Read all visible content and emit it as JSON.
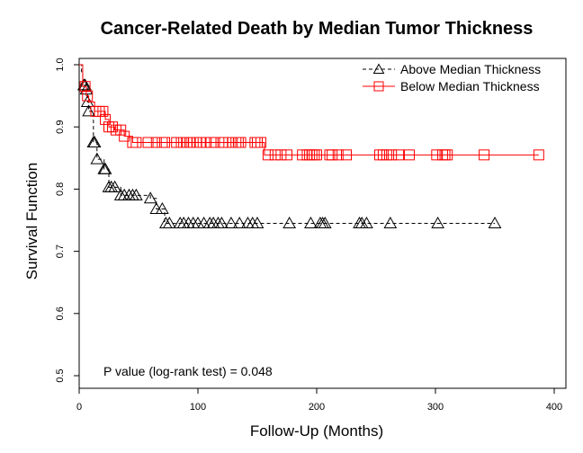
{
  "chart_data": {
    "type": "line",
    "title": "Cancer-Related Death by Median Tumor Thickness",
    "xlabel": "Follow-Up (Months)",
    "ylabel": "Survival Function",
    "xlim": [
      0,
      400
    ],
    "ylim": [
      0.48,
      1.0
    ],
    "xticks": [
      0,
      100,
      200,
      300,
      400
    ],
    "yticks": [
      0.5,
      0.6,
      0.7,
      0.8,
      0.9,
      1.0
    ],
    "xtick_labels": [
      "0",
      "100",
      "200",
      "300",
      "400"
    ],
    "ytick_labels": [
      "0.5",
      "0.6",
      "0.7",
      "0.8",
      "0.9",
      "1.0"
    ],
    "grid": false,
    "legend_position": "top-right",
    "annotation": "P value (log-rank test) =  0.048",
    "series": [
      {
        "name": "Above Median Thickness",
        "color": "#000000",
        "line_style": "dashed",
        "marker": "triangle",
        "steps": [
          [
            0,
            1.0
          ],
          [
            2,
            0.985
          ],
          [
            3,
            0.967
          ],
          [
            7,
            0.94
          ],
          [
            8,
            0.925
          ],
          [
            12,
            0.875
          ],
          [
            15,
            0.848
          ],
          [
            21,
            0.832
          ],
          [
            25,
            0.803
          ],
          [
            35,
            0.79
          ],
          [
            60,
            0.785
          ],
          [
            65,
            0.768
          ],
          [
            72,
            0.745
          ],
          [
            350,
            0.745
          ]
        ],
        "markers": [
          [
            4,
            0.967
          ],
          [
            5,
            0.967
          ],
          [
            6,
            0.96
          ],
          [
            7,
            0.94
          ],
          [
            8,
            0.925
          ],
          [
            12,
            0.875
          ],
          [
            13,
            0.875
          ],
          [
            15,
            0.848
          ],
          [
            21,
            0.832
          ],
          [
            22,
            0.832
          ],
          [
            25,
            0.803
          ],
          [
            27,
            0.803
          ],
          [
            30,
            0.803
          ],
          [
            35,
            0.79
          ],
          [
            38,
            0.79
          ],
          [
            42,
            0.79
          ],
          [
            45,
            0.79
          ],
          [
            48,
            0.79
          ],
          [
            60,
            0.785
          ],
          [
            65,
            0.768
          ],
          [
            70,
            0.768
          ],
          [
            73,
            0.745
          ],
          [
            76,
            0.745
          ],
          [
            85,
            0.745
          ],
          [
            88,
            0.745
          ],
          [
            92,
            0.745
          ],
          [
            96,
            0.745
          ],
          [
            100,
            0.745
          ],
          [
            105,
            0.745
          ],
          [
            110,
            0.745
          ],
          [
            113,
            0.745
          ],
          [
            117,
            0.745
          ],
          [
            120,
            0.745
          ],
          [
            128,
            0.745
          ],
          [
            135,
            0.745
          ],
          [
            142,
            0.745
          ],
          [
            146,
            0.745
          ],
          [
            150,
            0.745
          ],
          [
            177,
            0.745
          ],
          [
            195,
            0.745
          ],
          [
            203,
            0.745
          ],
          [
            205,
            0.745
          ],
          [
            207,
            0.745
          ],
          [
            236,
            0.745
          ],
          [
            238,
            0.745
          ],
          [
            242,
            0.745
          ],
          [
            262,
            0.745
          ],
          [
            302,
            0.745
          ],
          [
            350,
            0.745
          ]
        ]
      },
      {
        "name": "Below Median Thickness",
        "color": "#ff0000",
        "line_style": "solid",
        "marker": "square",
        "steps": [
          [
            0,
            1.0
          ],
          [
            3,
            0.965
          ],
          [
            6,
            0.95
          ],
          [
            8,
            0.94
          ],
          [
            13,
            0.925
          ],
          [
            22,
            0.912
          ],
          [
            25,
            0.9
          ],
          [
            30,
            0.895
          ],
          [
            38,
            0.885
          ],
          [
            45,
            0.875
          ],
          [
            155,
            0.875
          ],
          [
            156,
            0.855
          ],
          [
            387,
            0.855
          ]
        ],
        "markers": [
          [
            5,
            0.965
          ],
          [
            7,
            0.95
          ],
          [
            14,
            0.925
          ],
          [
            17,
            0.925
          ],
          [
            20,
            0.925
          ],
          [
            22,
            0.912
          ],
          [
            25,
            0.9
          ],
          [
            28,
            0.9
          ],
          [
            31,
            0.895
          ],
          [
            35,
            0.895
          ],
          [
            38,
            0.885
          ],
          [
            45,
            0.875
          ],
          [
            48,
            0.875
          ],
          [
            58,
            0.875
          ],
          [
            65,
            0.875
          ],
          [
            70,
            0.875
          ],
          [
            72,
            0.875
          ],
          [
            82,
            0.875
          ],
          [
            86,
            0.875
          ],
          [
            88,
            0.875
          ],
          [
            91,
            0.875
          ],
          [
            93,
            0.875
          ],
          [
            96,
            0.875
          ],
          [
            99,
            0.875
          ],
          [
            102,
            0.875
          ],
          [
            107,
            0.875
          ],
          [
            111,
            0.875
          ],
          [
            114,
            0.875
          ],
          [
            121,
            0.875
          ],
          [
            126,
            0.875
          ],
          [
            129,
            0.875
          ],
          [
            132,
            0.875
          ],
          [
            134,
            0.875
          ],
          [
            136,
            0.875
          ],
          [
            148,
            0.875
          ],
          [
            150,
            0.875
          ],
          [
            153,
            0.875
          ],
          [
            159,
            0.855
          ],
          [
            165,
            0.855
          ],
          [
            170,
            0.855
          ],
          [
            175,
            0.855
          ],
          [
            188,
            0.855
          ],
          [
            192,
            0.855
          ],
          [
            194,
            0.855
          ],
          [
            196,
            0.855
          ],
          [
            198,
            0.855
          ],
          [
            200,
            0.855
          ],
          [
            211,
            0.855
          ],
          [
            213,
            0.855
          ],
          [
            218,
            0.855
          ],
          [
            225,
            0.855
          ],
          [
            253,
            0.855
          ],
          [
            256,
            0.855
          ],
          [
            259,
            0.855
          ],
          [
            263,
            0.855
          ],
          [
            269,
            0.855
          ],
          [
            278,
            0.855
          ],
          [
            301,
            0.855
          ],
          [
            306,
            0.855
          ],
          [
            308,
            0.855
          ],
          [
            310,
            0.855
          ],
          [
            341,
            0.855
          ],
          [
            387,
            0.855
          ]
        ]
      }
    ]
  }
}
